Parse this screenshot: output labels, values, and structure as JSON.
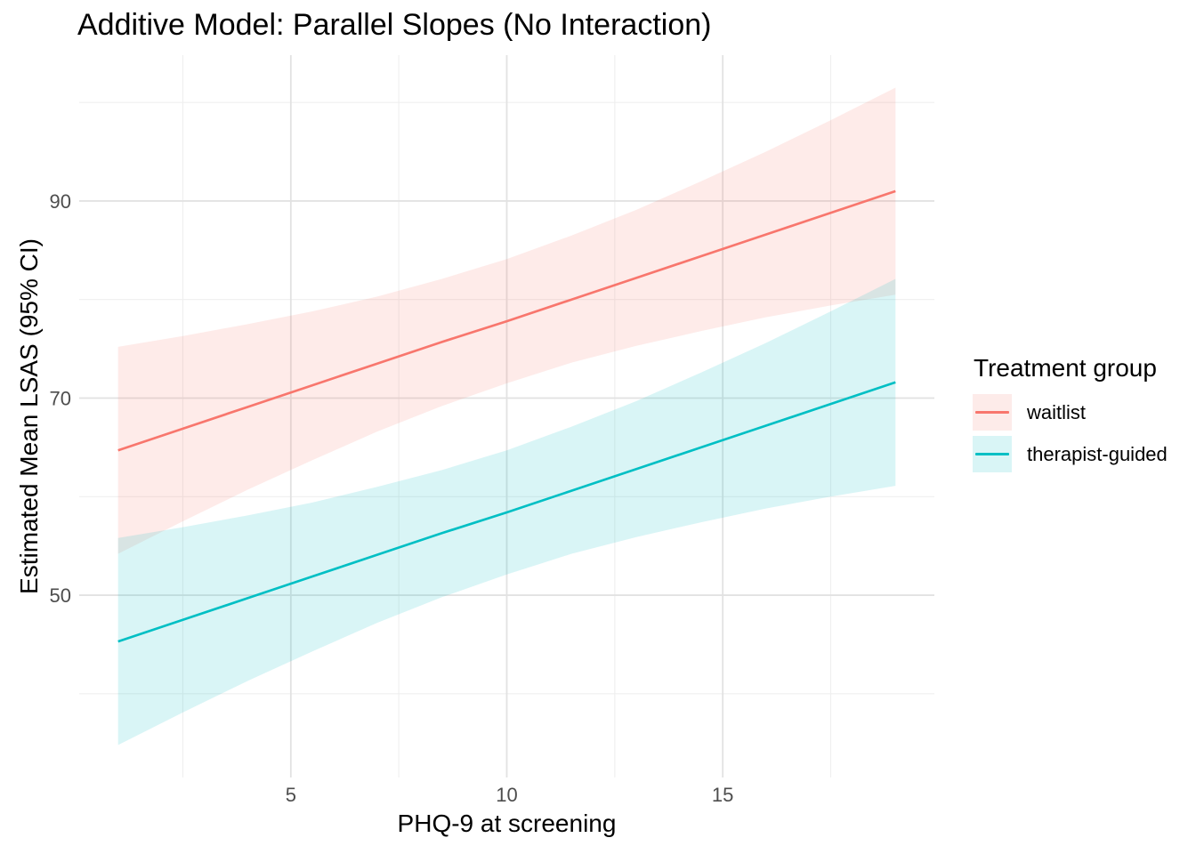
{
  "chart_data": {
    "type": "line",
    "title": "Additive Model: Parallel Slopes (No Interaction)",
    "xlabel": "PHQ-9 at screening",
    "ylabel": "Estimated Mean LSAS (95% CI)",
    "x_range": [
      0.1,
      19.9
    ],
    "y_range": [
      31.5,
      104.8
    ],
    "x_ticks": [
      {
        "v": 5,
        "label": "5"
      },
      {
        "v": 10,
        "label": "10"
      },
      {
        "v": 15,
        "label": "15"
      }
    ],
    "x_minor": [
      2.5,
      7.5,
      12.5,
      17.5
    ],
    "y_ticks": [
      {
        "v": 50,
        "label": "50"
      },
      {
        "v": 70,
        "label": "70"
      },
      {
        "v": 90,
        "label": "90"
      }
    ],
    "y_minor": [
      40,
      60,
      80,
      100
    ],
    "grid": {
      "major": "#e2e2e2",
      "minor": "#efefef"
    },
    "tick_label_color": "#4d4d4d",
    "ribbon_opacity": 0.15,
    "line_width": 2.7,
    "x": [
      1,
      2.5,
      4,
      5.5,
      7,
      8.5,
      10,
      11.5,
      13,
      14.5,
      16,
      17.5,
      19
    ],
    "series": [
      {
        "name": "waitlist",
        "color": "#F8766D",
        "mean": [
          64.7,
          66.9,
          69.1,
          71.3,
          73.5,
          75.7,
          77.8,
          80.0,
          82.2,
          84.4,
          86.6,
          88.8,
          91.0
        ],
        "lower": [
          54.2,
          57.5,
          60.7,
          63.7,
          66.6,
          69.2,
          71.5,
          73.6,
          75.3,
          76.8,
          78.2,
          79.4,
          80.5
        ],
        "upper": [
          75.2,
          76.3,
          77.5,
          78.8,
          80.3,
          82.1,
          84.1,
          86.5,
          89.1,
          92.0,
          95.0,
          98.2,
          101.5
        ]
      },
      {
        "name": "therapist-guided",
        "color": "#00BFC4",
        "mean": [
          45.3,
          47.5,
          49.7,
          51.9,
          54.1,
          56.3,
          58.4,
          60.6,
          62.8,
          65.0,
          67.2,
          69.4,
          71.6
        ],
        "lower": [
          34.8,
          38.1,
          41.3,
          44.3,
          47.2,
          49.8,
          52.1,
          54.2,
          55.9,
          57.4,
          58.8,
          60.0,
          61.1
        ],
        "upper": [
          55.8,
          56.9,
          58.1,
          59.4,
          61.0,
          62.7,
          64.7,
          67.1,
          69.7,
          72.6,
          75.6,
          78.8,
          82.1
        ]
      }
    ],
    "legend": {
      "title": "Treatment group",
      "items": [
        {
          "label": "waitlist",
          "color": "#F8766D",
          "fill": "#FDEBE9"
        },
        {
          "label": "therapist-guided",
          "color": "#00BFC4",
          "fill": "#D9F5F6"
        }
      ]
    }
  }
}
